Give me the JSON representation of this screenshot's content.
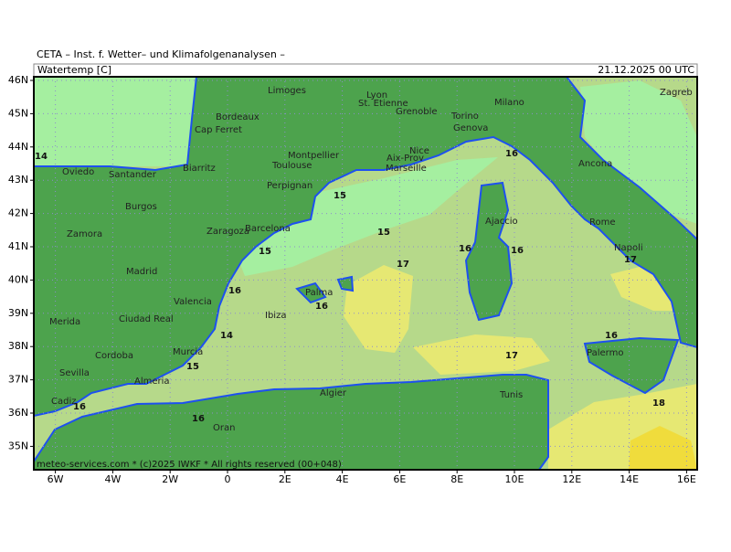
{
  "header": "CETA – Inst. f. Wetter– und Klimafolgenanalysen –",
  "title": "Watertemp [C]",
  "date": "21.12.2025 00 UTC",
  "copyright": "meteo-services.com * (c)2025 IWKF * All rights reserved (00+048)",
  "lon_ticks": [
    {
      "value": -6,
      "label": "6W"
    },
    {
      "value": -4,
      "label": "4W"
    },
    {
      "value": -2,
      "label": "2W"
    },
    0,
    {
      "value": 2,
      "label": "2E"
    },
    {
      "value": 4,
      "label": "4E"
    },
    {
      "value": 6,
      "label": "6E"
    },
    {
      "value": 8,
      "label": "8E"
    },
    {
      "value": 10,
      "label": "10E"
    },
    {
      "value": 12,
      "label": "12E"
    },
    {
      "value": 14,
      "label": "14E"
    },
    {
      "value": 16,
      "label": "16E"
    }
  ],
  "lat_ticks": [
    {
      "value": 46,
      "label": "46N"
    },
    {
      "value": 45,
      "label": "45N"
    },
    {
      "value": 44,
      "label": "44N"
    },
    {
      "value": 43,
      "label": "43N"
    },
    {
      "value": 42,
      "label": "42N"
    },
    {
      "value": 41,
      "label": "41N"
    },
    {
      "value": 40,
      "label": "40N"
    },
    {
      "value": 39,
      "label": "39N"
    },
    {
      "value": 38,
      "label": "38N"
    },
    {
      "value": 37,
      "label": "37N"
    },
    {
      "value": 36,
      "label": "36N"
    },
    {
      "value": 35,
      "label": "35N"
    }
  ],
  "places": [
    "Limoges",
    "Lyon",
    "Milano",
    "Zagreb",
    "Bordeaux",
    "St. Etienne",
    "Grenoble",
    "Torino",
    "Genova",
    "Cap Ferret",
    "Montpellier",
    "Nice",
    "Aix-Prov",
    "Marseille",
    "Toulouse",
    "Oviedo",
    "Santander",
    "Biarritz",
    "Perpignan",
    "Ancona",
    "Burgos",
    "Zaragoza",
    "Barcelona",
    "Ajaccio",
    "Rome",
    "Zamora",
    "Napoli",
    "Madrid",
    "Valencia",
    "Palma",
    "Ibiza",
    "Merida",
    "Ciudad Real",
    "Murcia",
    "Cordoba",
    "Palermo",
    "Sevilla",
    "Almeria",
    "Cadiz",
    "Algier",
    "Tunis",
    "Oran"
  ],
  "contour_labels": [
    14,
    15,
    15,
    15,
    16,
    16,
    16,
    16,
    16,
    17,
    17,
    14,
    15,
    16,
    16,
    17,
    16,
    18
  ]
}
